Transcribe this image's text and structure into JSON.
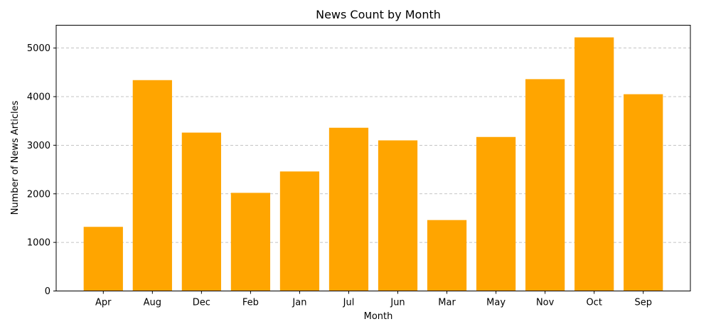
{
  "chart_data": {
    "type": "bar",
    "title": "News Count by Month",
    "xlabel": "Month",
    "ylabel": "Number of News Articles",
    "categories": [
      "Apr",
      "Aug",
      "Dec",
      "Feb",
      "Jan",
      "Jul",
      "Jun",
      "Mar",
      "May",
      "Nov",
      "Oct",
      "Sep"
    ],
    "values": [
      1320,
      4340,
      3260,
      2020,
      2460,
      3360,
      3100,
      1460,
      3170,
      4360,
      5220,
      4050
    ],
    "ylim": [
      0,
      5470
    ],
    "yticks": [
      0,
      1000,
      2000,
      3000,
      4000,
      5000
    ],
    "grid": "y-dashed",
    "bar_color": "#FFA500"
  }
}
